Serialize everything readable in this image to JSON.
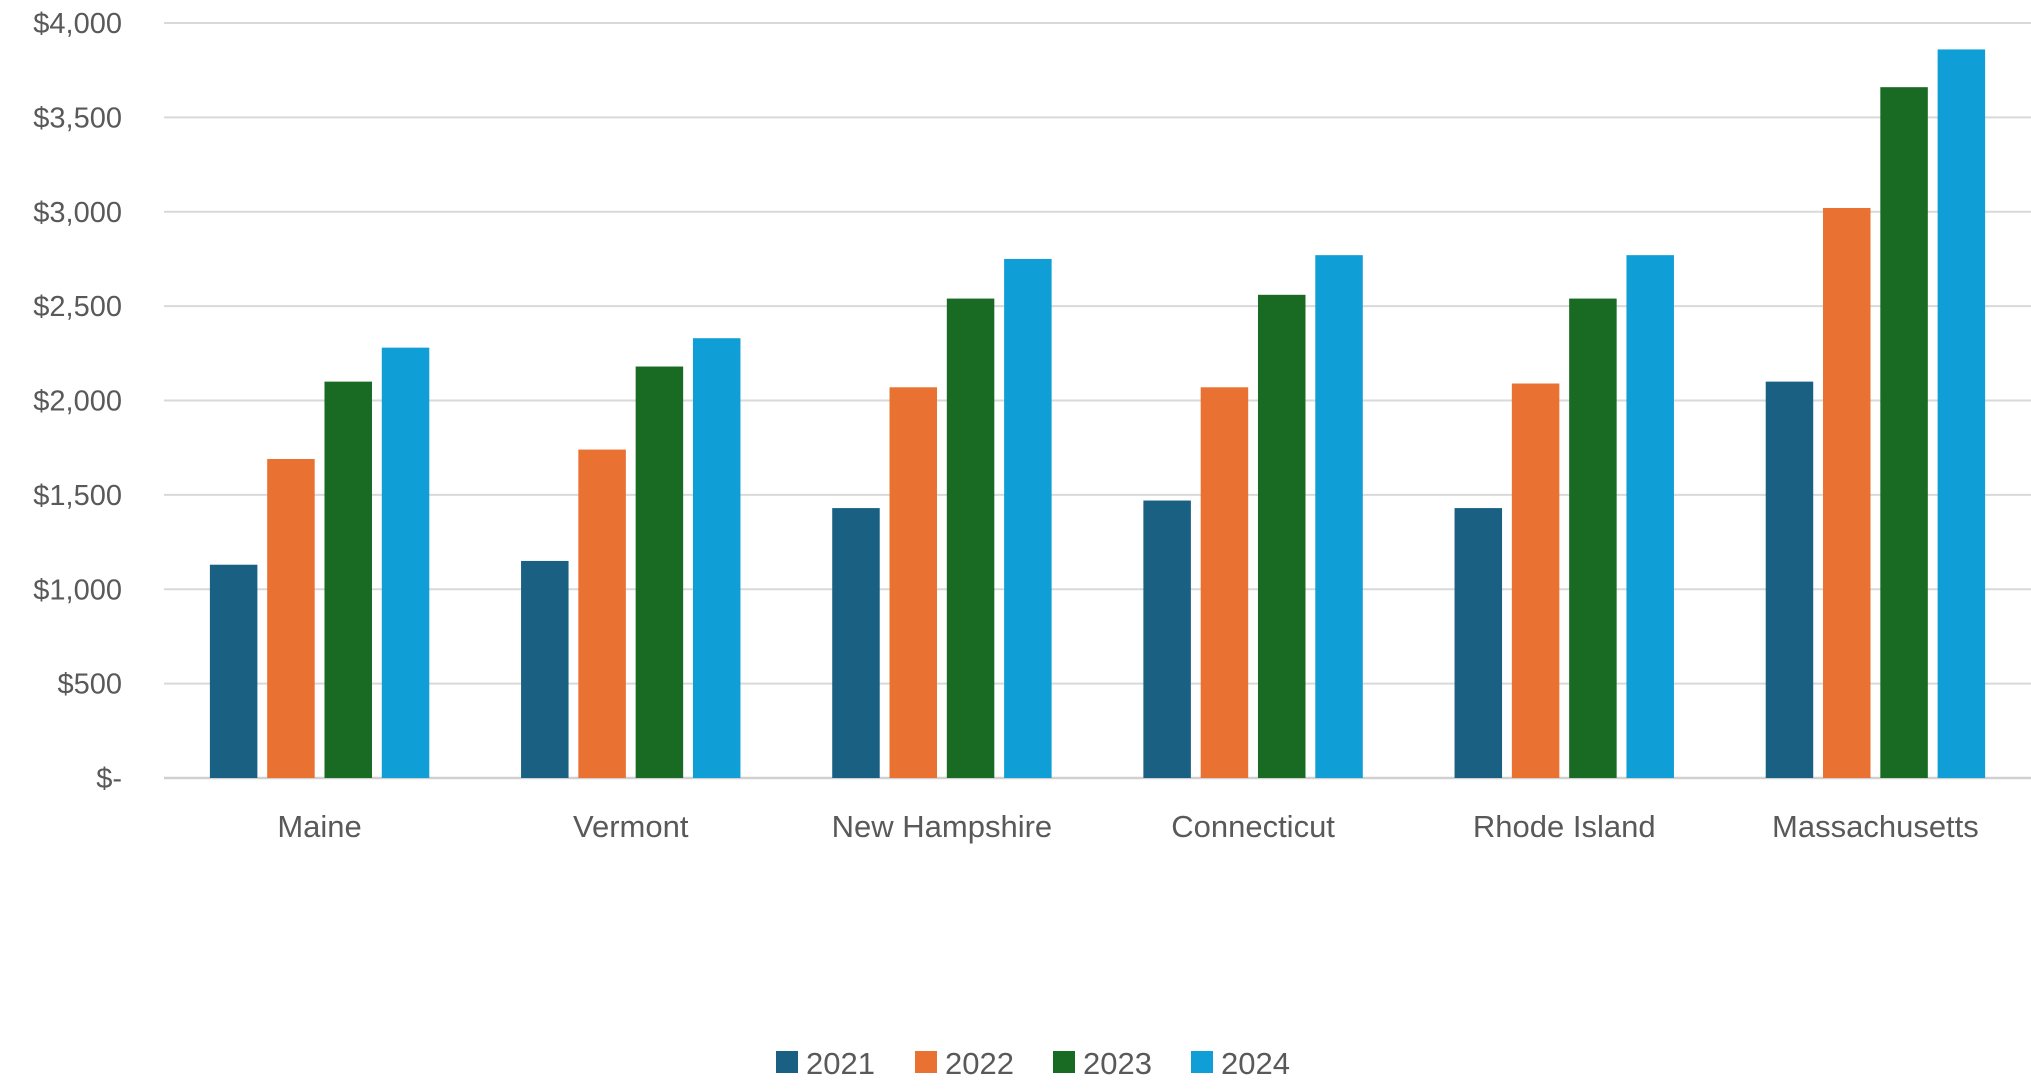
{
  "chart_data": {
    "type": "bar",
    "title": "",
    "xlabel": "",
    "ylabel": "",
    "categories": [
      "Maine",
      "Vermont",
      "New Hampshire",
      "Connecticut",
      "Rhode Island",
      "Massachusetts"
    ],
    "series": [
      {
        "name": "2021",
        "color": "#1a6082",
        "values": [
          1130,
          1150,
          1430,
          1470,
          1430,
          2100
        ]
      },
      {
        "name": "2022",
        "color": "#e97132",
        "values": [
          1690,
          1740,
          2070,
          2070,
          2090,
          3020
        ]
      },
      {
        "name": "2023",
        "color": "#196b24",
        "values": [
          2100,
          2180,
          2540,
          2560,
          2540,
          3660
        ]
      },
      {
        "name": "2024",
        "color": "#0f9ed5",
        "values": [
          2280,
          2330,
          2750,
          2770,
          2770,
          3860
        ]
      }
    ],
    "ylim": [
      0,
      4000
    ],
    "y_ticks": [
      0,
      500,
      1000,
      1500,
      2000,
      2500,
      3000,
      3500,
      4000
    ],
    "y_tick_labels": [
      "$-",
      "$500",
      "$1,000",
      "$1,500",
      "$2,000",
      "$2,500",
      "$3,000",
      "$3,500",
      "$4,000"
    ],
    "grid": true,
    "legend_position": "bottom"
  }
}
